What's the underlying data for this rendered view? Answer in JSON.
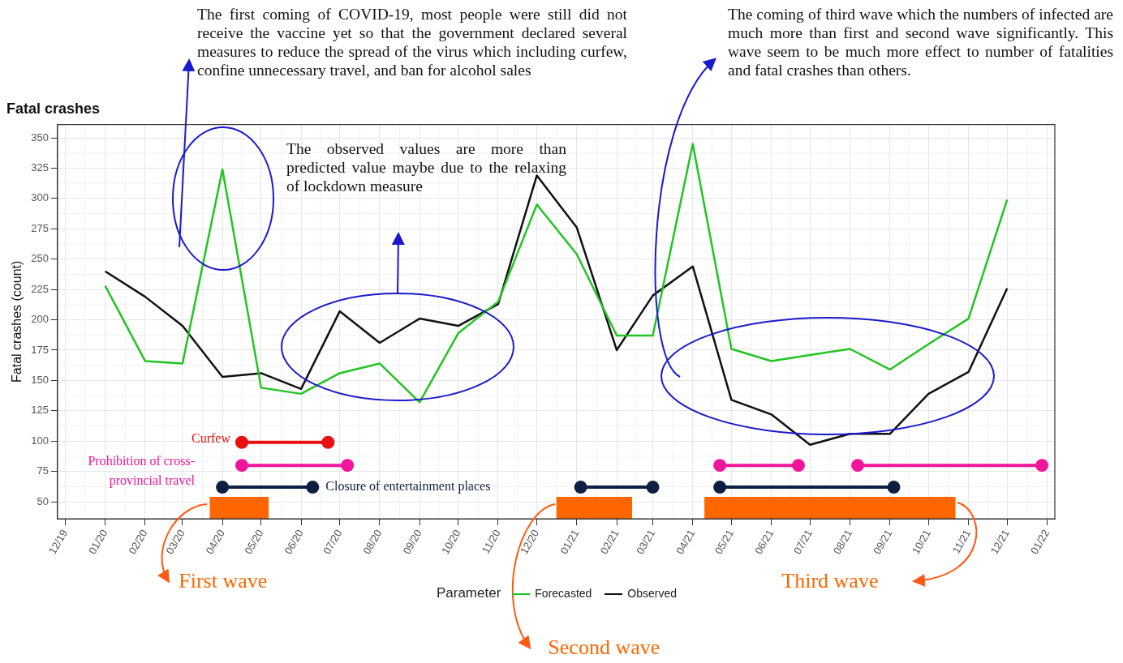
{
  "chart_data": {
    "type": "line",
    "title": "Fatal crashes",
    "ylabel": "Fatal crashes (count)",
    "legend_title": "Parameter",
    "legend": "bottom",
    "grid": true,
    "x": [
      "2020-01",
      "2020-02",
      "2020-03",
      "2020-04",
      "2020-05",
      "2020-06",
      "2020-07",
      "2020-08",
      "2020-09",
      "2020-10",
      "2020-11",
      "2020-12",
      "2021-01",
      "2021-02",
      "2021-03",
      "2021-04",
      "2021-05",
      "2021-06",
      "2021-07",
      "2021-08",
      "2021-09",
      "2021-10",
      "2021-11",
      "2021-12"
    ],
    "xlim": [
      "2019-11-25",
      "2022-01-07"
    ],
    "xticks": [
      {
        "value": "2019-12",
        "label": "12/19"
      },
      {
        "value": "2020-01",
        "label": "01/20"
      },
      {
        "value": "2020-02",
        "label": "02/20"
      },
      {
        "value": "2020-03",
        "label": "03/20"
      },
      {
        "value": "2020-04",
        "label": "04/20"
      },
      {
        "value": "2020-05",
        "label": "05/20"
      },
      {
        "value": "2020-06",
        "label": "06/20"
      },
      {
        "value": "2020-07",
        "label": "07/20"
      },
      {
        "value": "2020-08",
        "label": "08/20"
      },
      {
        "value": "2020-09",
        "label": "09/20"
      },
      {
        "value": "2020-10",
        "label": "10/20"
      },
      {
        "value": "2020-11",
        "label": "11/20"
      },
      {
        "value": "2020-12",
        "label": "12/20"
      },
      {
        "value": "2021-01",
        "label": "01/21"
      },
      {
        "value": "2021-02",
        "label": "02/21"
      },
      {
        "value": "2021-03",
        "label": "03/21"
      },
      {
        "value": "2021-04",
        "label": "04/21"
      },
      {
        "value": "2021-05",
        "label": "05/21"
      },
      {
        "value": "2021-06",
        "label": "06/21"
      },
      {
        "value": "2021-07",
        "label": "07/21"
      },
      {
        "value": "2021-08",
        "label": "08/21"
      },
      {
        "value": "2021-09",
        "label": "09/21"
      },
      {
        "value": "2021-10",
        "label": "10/21"
      },
      {
        "value": "2021-11",
        "label": "11/21"
      },
      {
        "value": "2021-12",
        "label": "12/21"
      },
      {
        "value": "2022-01",
        "label": "01/22"
      }
    ],
    "ylim": [
      36,
      361
    ],
    "yticks": [
      50,
      75,
      100,
      125,
      150,
      175,
      200,
      225,
      250,
      275,
      300,
      325,
      350
    ],
    "series": [
      {
        "name": "Forecasted",
        "color": "#22c422",
        "values": [
          228,
          166,
          164,
          324,
          144,
          139,
          156,
          164,
          132,
          189,
          215,
          295,
          254,
          187,
          187,
          345,
          176,
          166,
          171,
          176,
          159,
          180,
          201,
          299
        ]
      },
      {
        "name": "Observed",
        "color": "#111111",
        "values": [
          240,
          219,
          195,
          153,
          156,
          143,
          207,
          181,
          201,
          195,
          213,
          319,
          276,
          175,
          220,
          244,
          134,
          122,
          97,
          106,
          106,
          139,
          157,
          226
        ]
      },
      {
        "type": "area",
        "name": "First wave",
        "color": "#ff6600",
        "x": [
          "2020-03-22",
          "2020-05-07"
        ],
        "values": [
          54,
          54
        ]
      },
      {
        "type": "area",
        "name": "Second wave",
        "color": "#ff6600",
        "x": [
          "2020-12-16",
          "2021-02-13"
        ],
        "values": [
          54,
          54
        ]
      },
      {
        "type": "area",
        "name": "Third wave",
        "color": "#ff6600",
        "x": [
          "2021-04-10",
          "2021-10-22"
        ],
        "values": [
          54,
          54
        ]
      },
      {
        "name": "Curfew",
        "color": "#e81010",
        "marker": "circle",
        "x": [
          "2020-04-16",
          "2020-06-22"
        ],
        "values": [
          99,
          99
        ]
      },
      {
        "name": "Prohibition of cross-provincial travel",
        "color": "#f0169a",
        "marker": "circle",
        "x": [
          "2020-04-16",
          "2020-07-07"
        ],
        "values": [
          80,
          80
        ]
      },
      {
        "color": "#f0169a",
        "marker": "circle",
        "x": [
          "2021-04-22",
          "2021-06-22"
        ],
        "values": [
          80,
          80
        ]
      },
      {
        "color": "#f0169a",
        "marker": "circle",
        "x": [
          "2021-08-07",
          "2021-12-28"
        ],
        "values": [
          80,
          80
        ]
      },
      {
        "name": "Closure of entertainment places",
        "color": "#0d1f40",
        "marker": "circle",
        "x": [
          "2020-04-01",
          "2020-06-10"
        ],
        "values": [
          62,
          62
        ]
      },
      {
        "color": "#0d1f40",
        "marker": "circle",
        "x": [
          "2021-01-04",
          "2021-03-01"
        ],
        "values": [
          62,
          62
        ]
      },
      {
        "color": "#0d1f40",
        "marker": "circle",
        "x": [
          "2021-04-22",
          "2021-09-04"
        ],
        "values": [
          62,
          62
        ]
      }
    ],
    "annotations": [
      "The first coming of COVID-19, most people were still did not receive the vaccine yet so that the government declared several measures to reduce the spread of the virus which including curfew, confine unnecessary travel, and ban for alcohol sales",
      "The observed values are more than predicted value maybe due to the relaxing of lockdown measure",
      "The coming of third wave which the numbers of infected are much more than first and second wave significantly. This wave seem to be much more effect to number of fatalities and fatal crashes than others."
    ]
  }
}
